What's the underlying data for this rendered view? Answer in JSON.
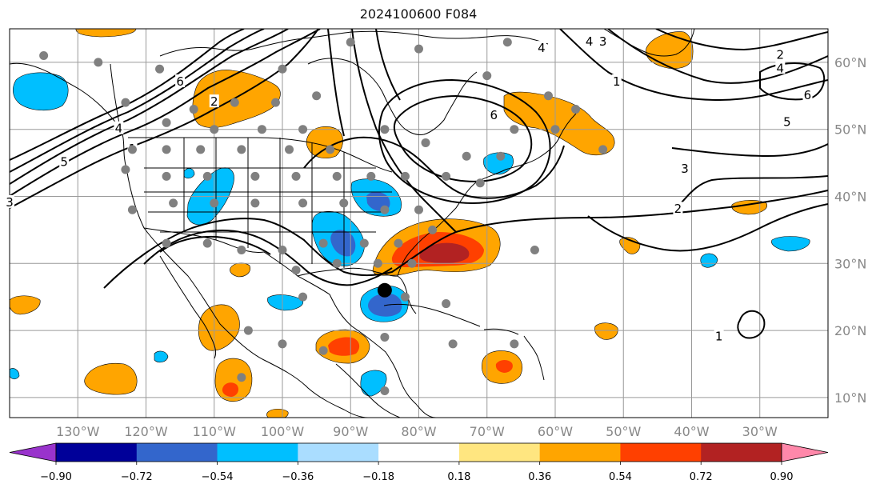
{
  "title": "2024100600 F084",
  "map": {
    "lon_range": [
      -140,
      -20
    ],
    "lat_range": [
      7,
      65
    ],
    "lon_ticks": [
      {
        "value": -130,
        "label": "130°W"
      },
      {
        "value": -120,
        "label": "120°W"
      },
      {
        "value": -110,
        "label": "110°W"
      },
      {
        "value": -100,
        "label": "100°W"
      },
      {
        "value": -90,
        "label": "90°W"
      },
      {
        "value": -80,
        "label": "80°W"
      },
      {
        "value": -70,
        "label": "70°W"
      },
      {
        "value": -60,
        "label": "60°W"
      },
      {
        "value": -50,
        "label": "50°W"
      },
      {
        "value": -40,
        "label": "40°W"
      },
      {
        "value": -30,
        "label": "30°W"
      }
    ],
    "lat_ticks": [
      {
        "value": 60,
        "label": "60°N"
      },
      {
        "value": 50,
        "label": "50°N"
      },
      {
        "value": 40,
        "label": "40°N"
      },
      {
        "value": 30,
        "label": "30°N"
      },
      {
        "value": 20,
        "label": "20°N"
      },
      {
        "value": 10,
        "label": "10°N"
      }
    ],
    "grid": true
  },
  "contour_labels": [
    {
      "text": "6",
      "lon": -115,
      "lat": 57
    },
    {
      "text": "2",
      "lon": -110,
      "lat": 54
    },
    {
      "text": "4",
      "lon": -124,
      "lat": 50
    },
    {
      "text": "1",
      "lon": -122,
      "lat": 47
    },
    {
      "text": "5",
      "lon": -132,
      "lat": 45
    },
    {
      "text": "3",
      "lon": -140,
      "lat": 39
    },
    {
      "text": "6",
      "lon": -69,
      "lat": 52
    },
    {
      "text": "4",
      "lon": -62,
      "lat": 62
    },
    {
      "text": "4",
      "lon": -55,
      "lat": 63
    },
    {
      "text": "3",
      "lon": -53,
      "lat": 63
    },
    {
      "text": "1",
      "lon": -51,
      "lat": 57
    },
    {
      "text": "2",
      "lon": -27,
      "lat": 61
    },
    {
      "text": "4",
      "lon": -27,
      "lat": 59
    },
    {
      "text": "6",
      "lon": -23,
      "lat": 55
    },
    {
      "text": "5",
      "lon": -26,
      "lat": 51
    },
    {
      "text": "3",
      "lon": -41,
      "lat": 44
    },
    {
      "text": "2",
      "lon": -42,
      "lat": 38
    },
    {
      "text": "1",
      "lon": -36,
      "lat": 19
    }
  ],
  "storm_center": {
    "lon": -85,
    "lat": 26
  },
  "stations": [
    {
      "lon": -135,
      "lat": 61
    },
    {
      "lon": -127,
      "lat": 60
    },
    {
      "lon": -118,
      "lat": 59
    },
    {
      "lon": -123,
      "lat": 54
    },
    {
      "lon": -113,
      "lat": 53
    },
    {
      "lon": -107,
      "lat": 54
    },
    {
      "lon": -101,
      "lat": 54
    },
    {
      "lon": -95,
      "lat": 55
    },
    {
      "lon": -117,
      "lat": 51
    },
    {
      "lon": -110,
      "lat": 50
    },
    {
      "lon": -103,
      "lat": 50
    },
    {
      "lon": -97,
      "lat": 50
    },
    {
      "lon": -122,
      "lat": 47
    },
    {
      "lon": -117,
      "lat": 47
    },
    {
      "lon": -112,
      "lat": 47
    },
    {
      "lon": -106,
      "lat": 47
    },
    {
      "lon": -99,
      "lat": 47
    },
    {
      "lon": -93,
      "lat": 47
    },
    {
      "lon": -123,
      "lat": 44
    },
    {
      "lon": -117,
      "lat": 43
    },
    {
      "lon": -111,
      "lat": 43
    },
    {
      "lon": -104,
      "lat": 43
    },
    {
      "lon": -98,
      "lat": 43
    },
    {
      "lon": -92,
      "lat": 43
    },
    {
      "lon": -87,
      "lat": 43
    },
    {
      "lon": -82,
      "lat": 43
    },
    {
      "lon": -122,
      "lat": 38
    },
    {
      "lon": -116,
      "lat": 39
    },
    {
      "lon": -110,
      "lat": 39
    },
    {
      "lon": -104,
      "lat": 39
    },
    {
      "lon": -97,
      "lat": 39
    },
    {
      "lon": -91,
      "lat": 39
    },
    {
      "lon": -85,
      "lat": 38
    },
    {
      "lon": -80,
      "lat": 38
    },
    {
      "lon": -117,
      "lat": 33
    },
    {
      "lon": -111,
      "lat": 33
    },
    {
      "lon": -106,
      "lat": 32
    },
    {
      "lon": -100,
      "lat": 32
    },
    {
      "lon": -94,
      "lat": 33
    },
    {
      "lon": -88,
      "lat": 33
    },
    {
      "lon": -83,
      "lat": 33
    },
    {
      "lon": -78,
      "lat": 35
    },
    {
      "lon": -98,
      "lat": 29
    },
    {
      "lon": -92,
      "lat": 30
    },
    {
      "lon": -86,
      "lat": 30
    },
    {
      "lon": -81,
      "lat": 30
    },
    {
      "lon": -97,
      "lat": 25
    },
    {
      "lon": -82,
      "lat": 25
    },
    {
      "lon": -76,
      "lat": 24
    },
    {
      "lon": -85,
      "lat": 19
    },
    {
      "lon": -75,
      "lat": 18
    },
    {
      "lon": -105,
      "lat": 20
    },
    {
      "lon": -100,
      "lat": 18
    },
    {
      "lon": -94,
      "lat": 17
    },
    {
      "lon": -63,
      "lat": 32
    },
    {
      "lon": -71,
      "lat": 42
    },
    {
      "lon": -76,
      "lat": 43
    },
    {
      "lon": -73,
      "lat": 46
    },
    {
      "lon": -68,
      "lat": 46
    },
    {
      "lon": -66,
      "lat": 50
    },
    {
      "lon": -60,
      "lat": 50
    },
    {
      "lon": -57,
      "lat": 53
    },
    {
      "lon": -61,
      "lat": 55
    },
    {
      "lon": -70,
      "lat": 58
    },
    {
      "lon": -80,
      "lat": 62
    },
    {
      "lon": -90,
      "lat": 63
    },
    {
      "lon": -100,
      "lat": 59
    },
    {
      "lon": -67,
      "lat": 63
    },
    {
      "lon": -85,
      "lat": 50
    },
    {
      "lon": -79,
      "lat": 48
    },
    {
      "lon": -53,
      "lat": 47
    },
    {
      "lon": -106,
      "lat": 13
    },
    {
      "lon": -85,
      "lat": 11
    },
    {
      "lon": -66,
      "lat": 18
    }
  ],
  "colorbar": {
    "ticks": [
      "−0.90",
      "−0.72",
      "−0.54",
      "−0.36",
      "−0.18",
      "0.18",
      "0.36",
      "0.54",
      "0.72",
      "0.90"
    ],
    "colors": [
      "#9933cc",
      "#000099",
      "#3366cc",
      "#00bfff",
      "#aaddff",
      "#ffffff",
      "#ffe680",
      "#ffa500",
      "#ff4000",
      "#b22222",
      "#ff88aa"
    ]
  }
}
